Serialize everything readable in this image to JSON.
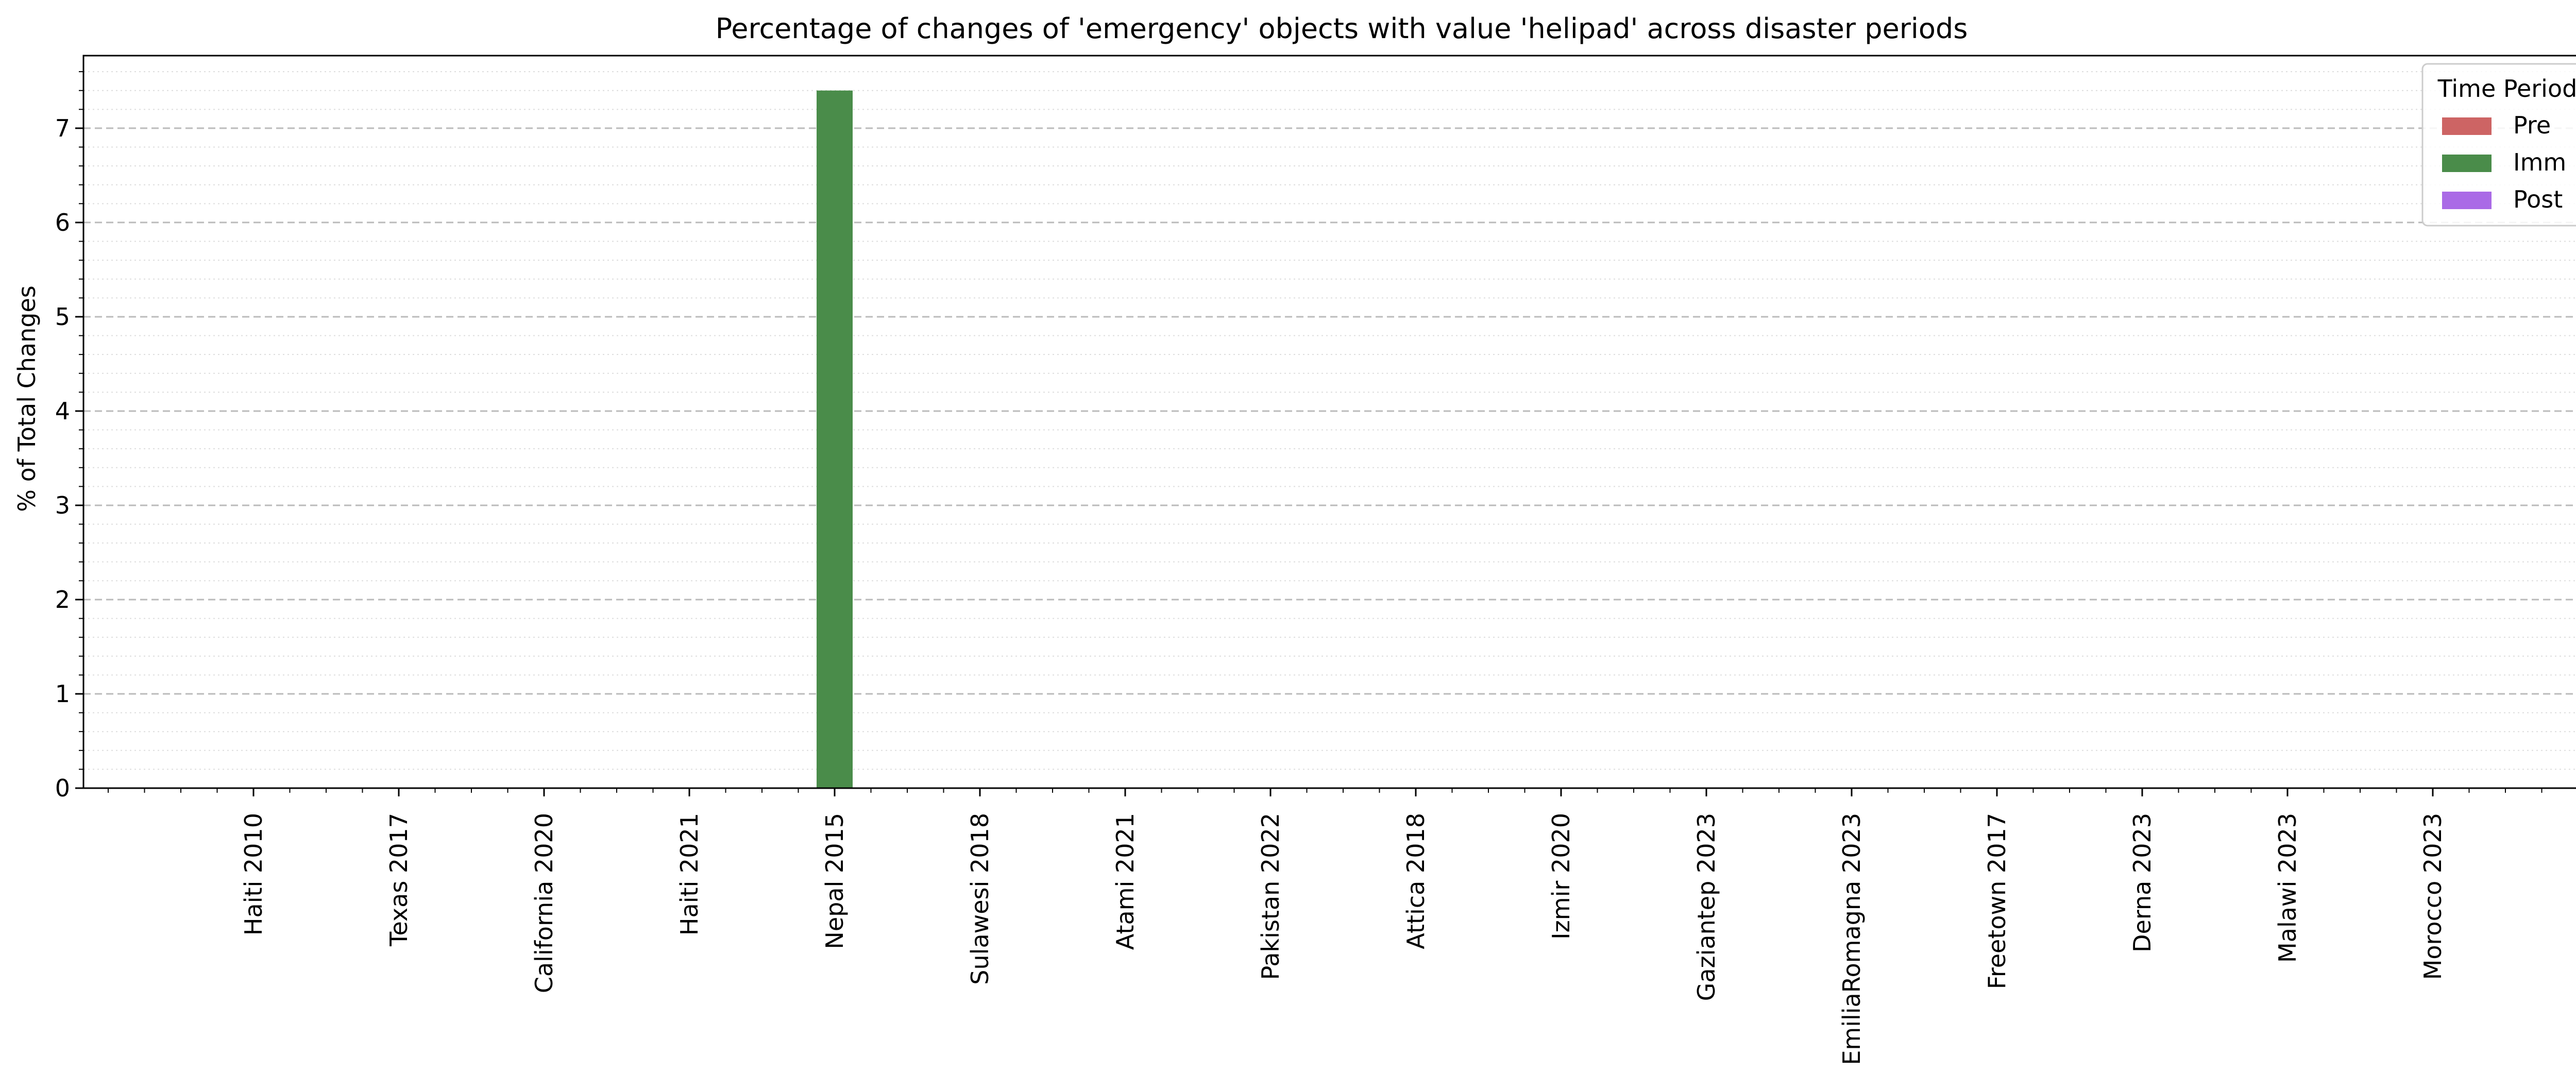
{
  "chart_data": {
    "type": "bar",
    "title": "Percentage of changes of 'emergency' objects with value 'helipad' across disaster periods",
    "xlabel": "",
    "ylabel": "% of Total Changes",
    "categories": [
      "Haiti 2010",
      "Texas 2017",
      "California 2020",
      "Haiti 2021",
      "Nepal 2015",
      "Sulawesi 2018",
      "Atami 2021",
      "Pakistan 2022",
      "Attica 2018",
      "Izmir 2020",
      "Gaziantep 2023",
      "EmiliaRomagna 2023",
      "Freetown 2017",
      "Derna 2023",
      "Malawi 2023",
      "Morocco 2023"
    ],
    "series": [
      {
        "name": "Pre",
        "color": "#cd6464",
        "values": [
          0,
          0,
          0,
          0,
          0,
          0,
          0,
          0,
          0,
          0,
          0,
          0,
          0,
          0,
          0,
          0
        ]
      },
      {
        "name": "Imm",
        "color": "#4a8c4a",
        "values": [
          0,
          0,
          0,
          0,
          7.4,
          0,
          0,
          0,
          0,
          0,
          0,
          0,
          0,
          0,
          0,
          0
        ]
      },
      {
        "name": "Post",
        "color": "#aa6ae6",
        "values": [
          0,
          0,
          0,
          0,
          0,
          0,
          0,
          0,
          0,
          0,
          0,
          0,
          0,
          0,
          0,
          0
        ]
      }
    ],
    "ylim": [
      0,
      7.77
    ],
    "yticks": [
      0,
      1,
      2,
      3,
      4,
      5,
      6,
      7
    ],
    "yminor_step": 0.2,
    "grid": {
      "major": "dashed",
      "minor": "dotted"
    },
    "legend": {
      "title": "Time Period",
      "placement": "top-right"
    }
  }
}
